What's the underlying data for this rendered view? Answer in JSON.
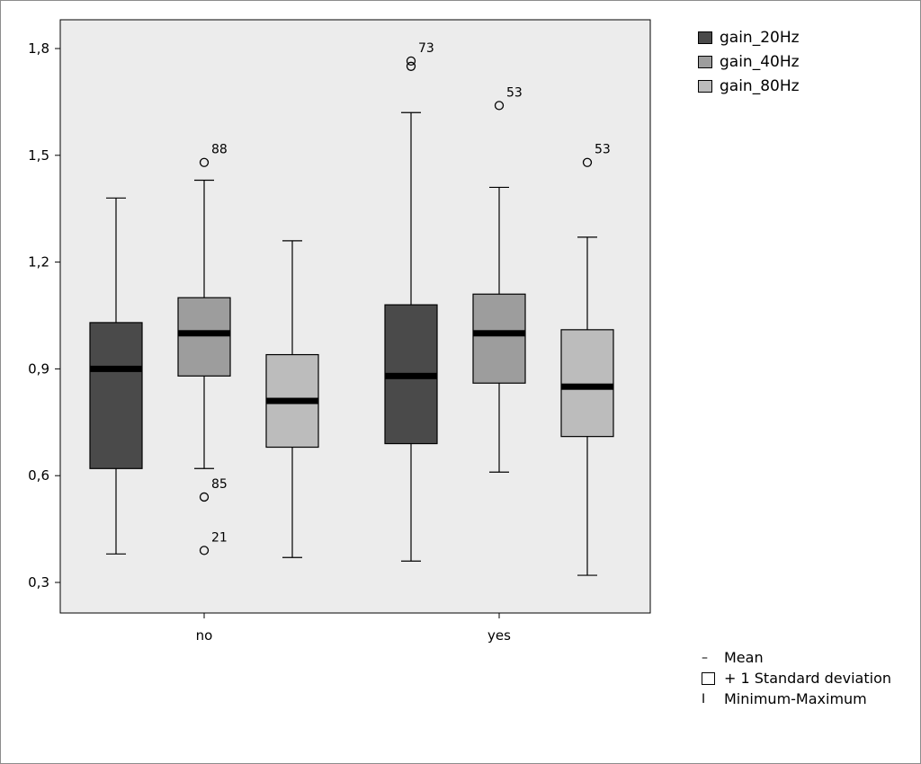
{
  "chart_data": {
    "type": "box",
    "title": "",
    "xlabel": "",
    "ylabel": "",
    "categories": [
      "no",
      "yes"
    ],
    "ylim": [
      0.22,
      1.88
    ],
    "yticks": [
      0.3,
      0.6,
      0.9,
      1.2,
      1.5,
      1.8
    ],
    "ytick_labels": [
      "0,3",
      "0,6",
      "0,9",
      "1,2",
      "1,5",
      "1,8"
    ],
    "grid": false,
    "legend_position": "top-right, outside plot",
    "series": [
      {
        "name": "gain_20Hz",
        "color": "#4a4a4a",
        "boxes": [
          {
            "category": "no",
            "min": 0.38,
            "q1": 0.62,
            "median": 0.9,
            "q3": 1.03,
            "max": 1.38,
            "outliers": []
          },
          {
            "category": "yes",
            "min": 0.36,
            "q1": 0.69,
            "median": 0.88,
            "q3": 1.08,
            "max": 1.62,
            "outliers": [
              {
                "value": 1.75,
                "label": ""
              },
              {
                "value": 1.765,
                "label": "73"
              }
            ]
          }
        ]
      },
      {
        "name": "gain_40Hz",
        "color": "#9d9d9d",
        "boxes": [
          {
            "category": "no",
            "min": 0.62,
            "q1": 0.88,
            "median": 1.0,
            "q3": 1.1,
            "max": 1.43,
            "outliers": [
              {
                "value": 1.48,
                "label": "88"
              },
              {
                "value": 0.54,
                "label": "85"
              },
              {
                "value": 0.39,
                "label": "21"
              }
            ]
          },
          {
            "category": "yes",
            "min": 0.61,
            "q1": 0.86,
            "median": 1.0,
            "q3": 1.11,
            "max": 1.41,
            "outliers": [
              {
                "value": 1.64,
                "label": "53"
              }
            ]
          }
        ]
      },
      {
        "name": "gain_80Hz",
        "color": "#bcbcbc",
        "boxes": [
          {
            "category": "no",
            "min": 0.37,
            "q1": 0.68,
            "median": 0.81,
            "q3": 0.94,
            "max": 1.26,
            "outliers": []
          },
          {
            "category": "yes",
            "min": 0.32,
            "q1": 0.71,
            "median": 0.85,
            "q3": 1.01,
            "max": 1.27,
            "outliers": [
              {
                "value": 1.48,
                "label": "53"
              }
            ]
          }
        ]
      }
    ],
    "key": [
      {
        "symbol": "–",
        "label": "Mean"
      },
      {
        "symbol": "box",
        "label": "+ 1 Standard deviation"
      },
      {
        "symbol": "I",
        "label": "Minimum-Maximum"
      }
    ],
    "colors": {
      "plot_bg": "#ececec"
    }
  }
}
